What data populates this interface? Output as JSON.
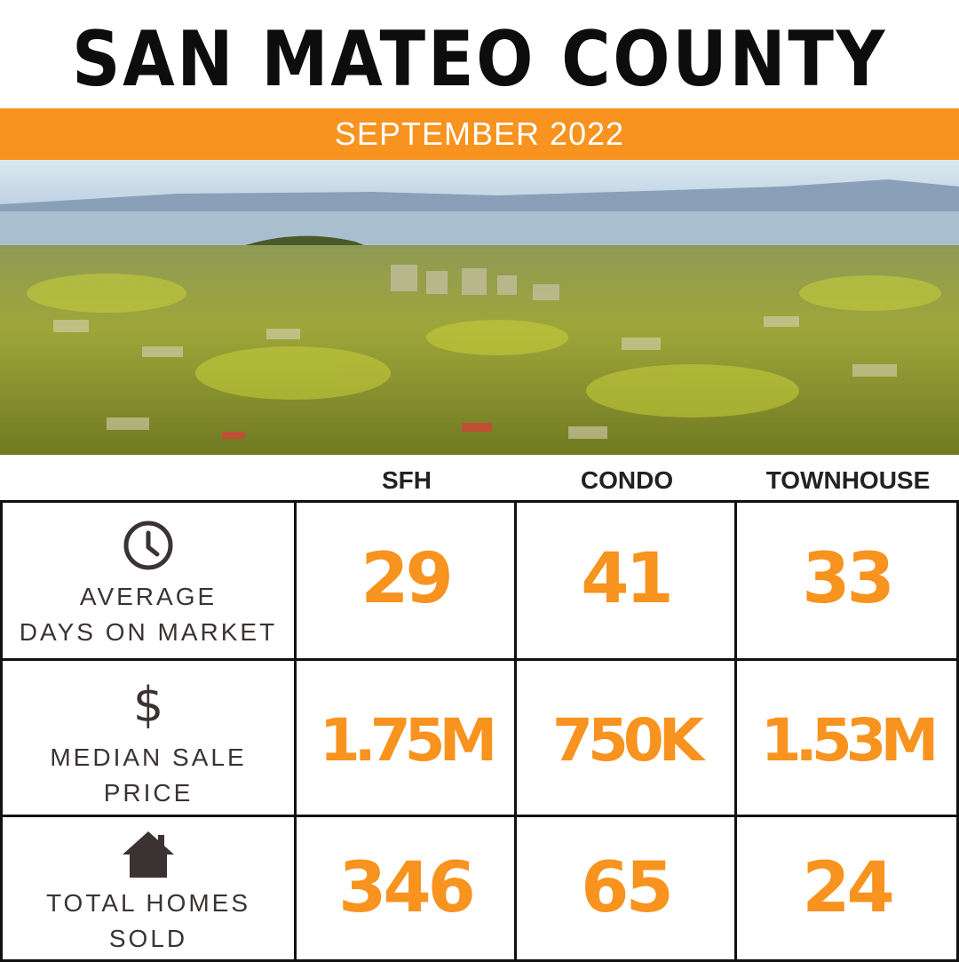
{
  "title": "SAN MATEO COUNTY",
  "subtitle": "SEPTEMBER 2022",
  "columns": [
    "SFH",
    "CONDO",
    "TOWNHOUSE"
  ],
  "rows": [
    {
      "icon": "clock-icon",
      "label_line1": "AVERAGE",
      "label_line2": "DAYS ON MARKET",
      "values": [
        "29",
        "41",
        "33"
      ]
    },
    {
      "icon": "dollar-icon",
      "label_line1": "MEDIAN SALE",
      "label_line2": "PRICE",
      "values": [
        "1.75M",
        "750K",
        "1.53M"
      ]
    },
    {
      "icon": "house-icon",
      "label_line1": "TOTAL HOMES",
      "label_line2": "SOLD",
      "values": [
        "346",
        "65",
        "24"
      ]
    }
  ],
  "colors": {
    "accent": "#f7931e",
    "title": "#0d0d0d",
    "label": "#3b3333",
    "grid": "#111111"
  }
}
